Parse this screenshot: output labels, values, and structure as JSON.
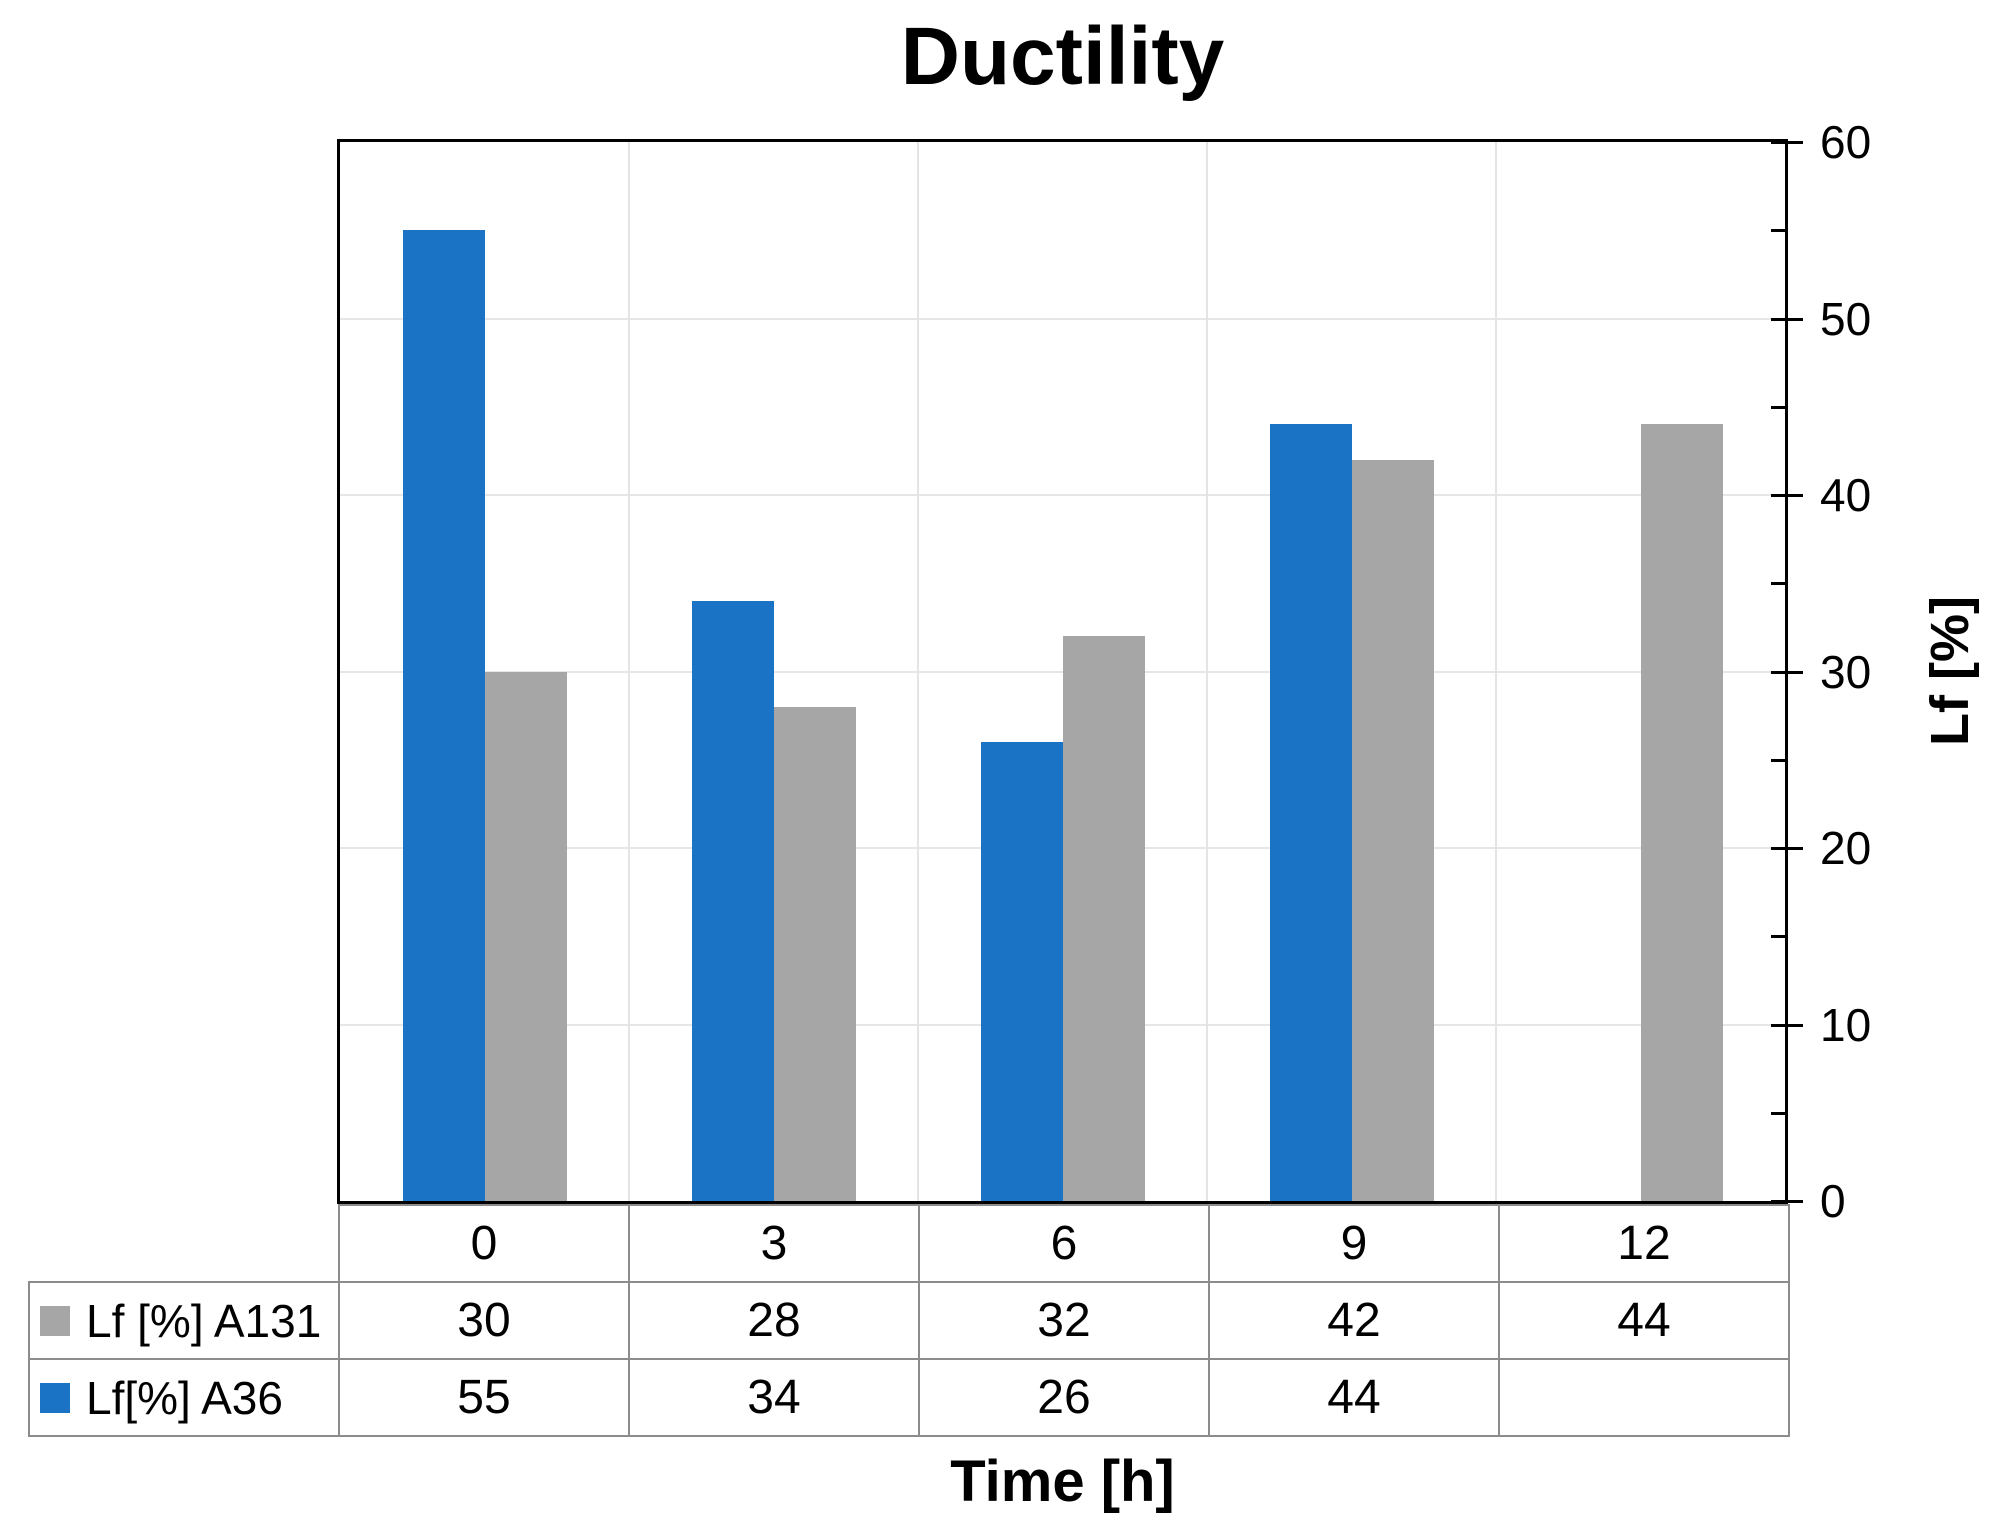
{
  "chart_data": {
    "type": "bar",
    "title": "Ductility",
    "xlabel": "Time [h]",
    "ylabel": "Lf [%]",
    "ylim": [
      0,
      60
    ],
    "y_major_step": 10,
    "y_minor_step": 5,
    "y_tick_labels": [
      "0",
      "10",
      "20",
      "30",
      "40",
      "50",
      "60"
    ],
    "grid": true,
    "legend_position": "left-of-data-table",
    "categories": [
      "0",
      "3",
      "6",
      "9",
      "12"
    ],
    "series": [
      {
        "name": "Lf [%] A131",
        "color": "#A6A6A6",
        "values": [
          30,
          28,
          32,
          42,
          44
        ],
        "cells": [
          "30",
          "28",
          "32",
          "42",
          "44"
        ]
      },
      {
        "name": "Lf[%] A36",
        "color": "#1B73C5",
        "values": [
          55,
          34,
          26,
          44,
          null
        ],
        "cells": [
          "55",
          "34",
          "26",
          "44",
          ""
        ]
      }
    ],
    "bar_cluster_order": [
      1,
      0
    ]
  },
  "style": {
    "axis_color": "#000000",
    "gridline_color": "#E6E6E6",
    "table_border_color": "#8C8C8C",
    "series_blue": "#1B73C5",
    "series_gray": "#A6A6A6"
  }
}
